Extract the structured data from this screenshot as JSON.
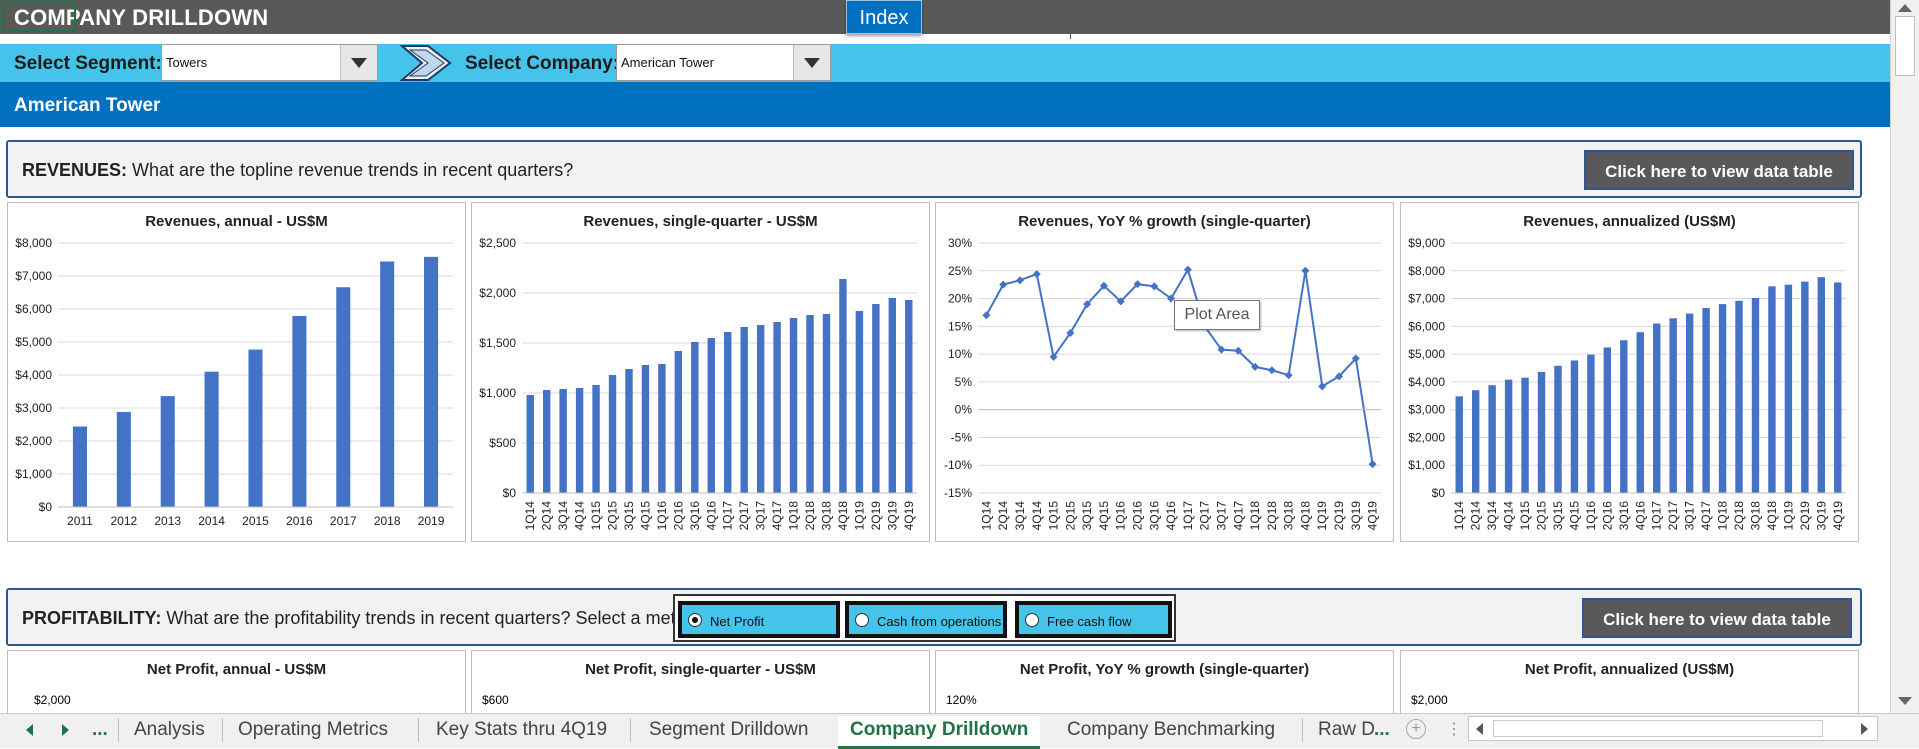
{
  "app": {
    "sheet_title": "COMPANY DRILLDOWN",
    "index_button": "Index"
  },
  "selectors": {
    "segment_label": "Select Segment:",
    "segment_value": "Towers",
    "company_label": "Select Company:",
    "company_value": "American Tower"
  },
  "company_banner": "American Tower",
  "revenues_section": {
    "title_bold": "REVENUES:",
    "title_rest": " What are the topline revenue trends in recent quarters?",
    "button": "Click here to view data table"
  },
  "profitability_section": {
    "title_bold": "PROFITABILITY:",
    "title_rest": " What are the profitability trends in recent quarters? Select a metric:",
    "button": "Click here to view data table",
    "options": [
      {
        "label": "Net Profit",
        "selected": true
      },
      {
        "label": "Cash from operations",
        "selected": false
      },
      {
        "label": "Free cash flow",
        "selected": false
      }
    ]
  },
  "tooltip": "Plot Area",
  "colors": {
    "bar": "#4472c4",
    "banner": "#0070c0",
    "selector_bar": "#46c3ea",
    "title_bar": "#595959",
    "active_tab": "#217346"
  },
  "chart_data": [
    {
      "type": "bar",
      "title": "Revenues, annual - US$M",
      "categories": [
        "2011",
        "2012",
        "2013",
        "2014",
        "2015",
        "2016",
        "2017",
        "2018",
        "2019"
      ],
      "values": [
        2440,
        2880,
        3360,
        4100,
        4770,
        5790,
        6660,
        7440,
        7580
      ],
      "ylim": [
        0,
        8000
      ],
      "yticks": [
        "$0",
        "$1,000",
        "$2,000",
        "$3,000",
        "$4,000",
        "$5,000",
        "$6,000",
        "$7,000",
        "$8,000"
      ]
    },
    {
      "type": "bar",
      "title": "Revenues, single-quarter - US$M",
      "categories": [
        "1Q14",
        "2Q14",
        "3Q14",
        "4Q14",
        "1Q15",
        "2Q15",
        "3Q15",
        "4Q15",
        "1Q16",
        "2Q16",
        "3Q16",
        "4Q16",
        "1Q17",
        "2Q17",
        "3Q17",
        "4Q17",
        "1Q18",
        "2Q18",
        "3Q18",
        "4Q18",
        "1Q19",
        "2Q19",
        "3Q19",
        "4Q19"
      ],
      "values": [
        980,
        1030,
        1040,
        1050,
        1080,
        1180,
        1240,
        1280,
        1290,
        1420,
        1510,
        1550,
        1610,
        1660,
        1680,
        1710,
        1750,
        1780,
        1790,
        2140,
        1820,
        1890,
        1950,
        1930
      ],
      "ylim": [
        0,
        2500
      ],
      "yticks": [
        "$0",
        "$500",
        "$1,000",
        "$1,500",
        "$2,000",
        "$2,500"
      ]
    },
    {
      "type": "line",
      "title": "Revenues, YoY % growth (single-quarter)",
      "categories": [
        "1Q14",
        "2Q14",
        "3Q14",
        "4Q14",
        "1Q15",
        "2Q15",
        "3Q15",
        "4Q15",
        "1Q16",
        "2Q16",
        "3Q16",
        "4Q16",
        "1Q17",
        "2Q17",
        "3Q17",
        "4Q17",
        "1Q18",
        "2Q18",
        "3Q18",
        "4Q18",
        "1Q19",
        "2Q19",
        "3Q19",
        "4Q19"
      ],
      "values": [
        17,
        22.5,
        23.3,
        24.4,
        9.5,
        13.8,
        19,
        22.3,
        19.5,
        22.6,
        22.2,
        20,
        25.2,
        15,
        10.8,
        10.6,
        7.7,
        7.1,
        6.2,
        25,
        4.2,
        6,
        9.2,
        -9.8
      ],
      "ylim": [
        -15,
        30
      ],
      "yticks": [
        "-15%",
        "-10%",
        "-5%",
        "0%",
        "5%",
        "10%",
        "15%",
        "20%",
        "25%",
        "30%"
      ]
    },
    {
      "type": "bar",
      "title": "Revenues, annualized (US$M)",
      "categories": [
        "1Q14",
        "2Q14",
        "3Q14",
        "4Q14",
        "1Q15",
        "2Q15",
        "3Q15",
        "4Q15",
        "1Q16",
        "2Q16",
        "3Q16",
        "4Q16",
        "1Q17",
        "2Q17",
        "3Q17",
        "4Q17",
        "1Q18",
        "2Q18",
        "3Q18",
        "4Q18",
        "1Q19",
        "2Q19",
        "3Q19",
        "4Q19"
      ],
      "values": [
        3480,
        3700,
        3880,
        4080,
        4150,
        4360,
        4580,
        4770,
        4980,
        5240,
        5500,
        5790,
        6100,
        6290,
        6460,
        6660,
        6800,
        6920,
        7020,
        7440,
        7500,
        7610,
        7770,
        7580
      ],
      "ylim": [
        0,
        9000
      ],
      "yticks": [
        "$0",
        "$1,000",
        "$2,000",
        "$3,000",
        "$4,000",
        "$5,000",
        "$6,000",
        "$7,000",
        "$8,000",
        "$9,000"
      ]
    },
    {
      "type": "bar",
      "title": "Net Profit, annual - US$M",
      "categories": [],
      "values": [],
      "yticks_visible": [
        "$2,000"
      ]
    },
    {
      "type": "bar",
      "title": "Net Profit, single-quarter - US$M",
      "categories": [],
      "values": [],
      "yticks_visible": [
        "$600"
      ]
    },
    {
      "type": "line",
      "title": "Net Profit, YoY % growth (single-quarter)",
      "categories": [],
      "values": [],
      "yticks_visible": [
        "120%"
      ]
    },
    {
      "type": "bar",
      "title": "Net Profit, annualized (US$M)",
      "categories": [],
      "values": [],
      "yticks_visible": [
        "$2,000"
      ]
    }
  ],
  "sheet_tabs": {
    "nav_more": "...",
    "tabs": [
      "Analysis",
      "Operating Metrics",
      "Key Stats thru 4Q19",
      "Segment Drilldown",
      "Company Drilldown",
      "Company Benchmarking",
      "Raw D"
    ],
    "active": "Company Drilldown",
    "overflow": "..."
  }
}
